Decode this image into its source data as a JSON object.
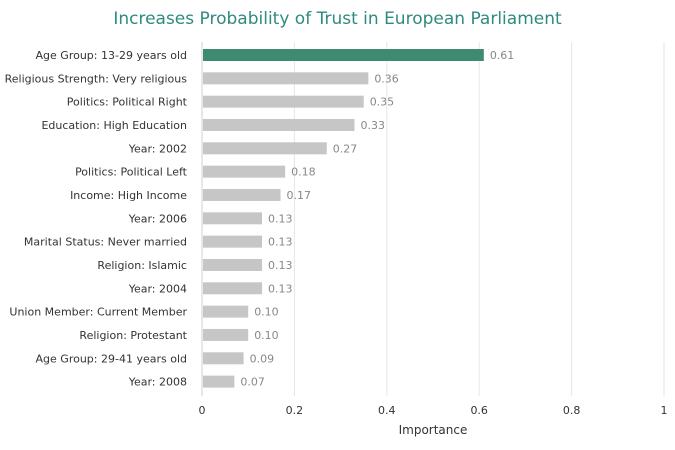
{
  "chart_data": {
    "type": "bar",
    "orientation": "horizontal",
    "title": "Increases Probability of Trust in European Parliament",
    "xlabel": "Importance",
    "ylabel": "",
    "xlim": [
      0,
      1
    ],
    "x_ticks": [
      "0",
      "0.2",
      "0.4",
      "0.6",
      "0.8",
      "1"
    ],
    "x_tick_values": [
      0,
      0.2,
      0.4,
      0.6,
      0.8,
      1
    ],
    "grid": true,
    "categories": [
      "Age Group: 13-29 years old",
      "Religious Strength: Very religious",
      "Politics: Political Right",
      "Education: High Education",
      "Year: 2002",
      "Politics: Political Left",
      "Income: High Income",
      "Year: 2006",
      "Marital Status: Never married",
      "Religion: Islamic",
      "Year: 2004",
      "Union Member: Current Member",
      "Religion: Protestant",
      "Age Group: 29-41 years old",
      "Year: 2008"
    ],
    "values": [
      0.61,
      0.36,
      0.35,
      0.33,
      0.27,
      0.18,
      0.17,
      0.13,
      0.13,
      0.13,
      0.13,
      0.1,
      0.1,
      0.09,
      0.07
    ],
    "value_labels": [
      "0.61",
      "0.36",
      "0.35",
      "0.33",
      "0.27",
      "0.18",
      "0.17",
      "0.13",
      "0.13",
      "0.13",
      "0.13",
      "0.10",
      "0.10",
      "0.09",
      "0.07"
    ],
    "colors": {
      "highlight": "#3e8b72",
      "default": "#c6c6c6",
      "title": "#2f8a7f",
      "grid": "#e6e6e6"
    }
  }
}
